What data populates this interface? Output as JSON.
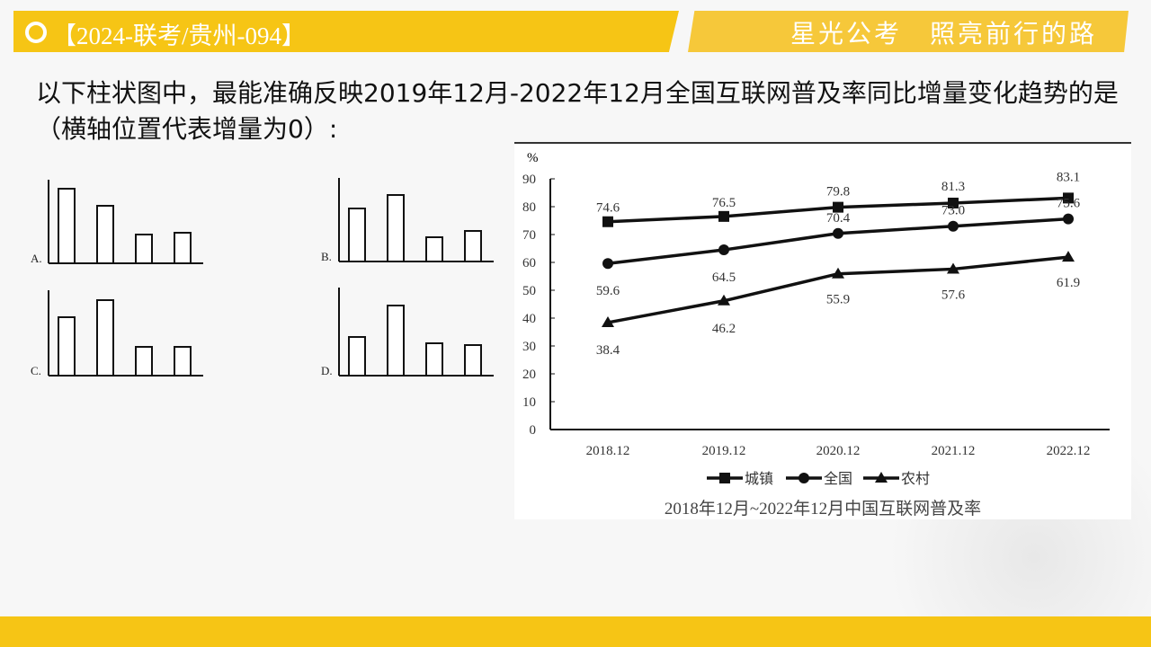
{
  "header": {
    "code": "【2024-联考/贵州-094】",
    "slogan": "星光公考　照亮前行的路"
  },
  "question": "以下柱状图中，最能准确反映2019年12月-2022年12月全国互联网普及率同比增量变化趋势的是（横轴位置代表增量为0）:",
  "options": [
    {
      "label": "A.",
      "relative_bar_heights": [
        83,
        64,
        32,
        34
      ]
    },
    {
      "label": "B.",
      "relative_bar_heights": [
        59,
        74,
        27,
        34
      ]
    },
    {
      "label": "C.",
      "relative_bar_heights": [
        65,
        84,
        32,
        32
      ]
    },
    {
      "label": "D.",
      "relative_bar_heights": [
        43,
        78,
        36,
        34
      ]
    }
  ],
  "chart_data": {
    "type": "line",
    "title": "2018年12月~2022年12月中国互联网普及率",
    "ylabel": "%",
    "ylim": [
      0,
      90
    ],
    "yticks": [
      "0",
      "10",
      "20",
      "30",
      "40",
      "50",
      "60",
      "70",
      "80",
      "90"
    ],
    "categories": [
      "2018.12",
      "2019.12",
      "2020.12",
      "2021.12",
      "2022.12"
    ],
    "series": [
      {
        "name": "城镇",
        "marker": "square",
        "values": [
          74.6,
          76.5,
          79.8,
          81.3,
          83.1
        ],
        "labels": [
          "74.6",
          "76.5",
          "79.8",
          "81.3",
          "83.1"
        ]
      },
      {
        "name": "全国",
        "marker": "circle",
        "values": [
          59.6,
          64.5,
          70.4,
          73.0,
          75.6
        ],
        "labels": [
          "59.6",
          "64.5",
          "70.4",
          "73.0",
          "75.6"
        ]
      },
      {
        "name": "农村",
        "marker": "triangle",
        "values": [
          38.4,
          46.2,
          55.9,
          57.6,
          61.9
        ],
        "labels": [
          "38.4",
          "46.2",
          "55.9",
          "57.6",
          "61.9"
        ]
      }
    ],
    "legend": "bottom"
  }
}
